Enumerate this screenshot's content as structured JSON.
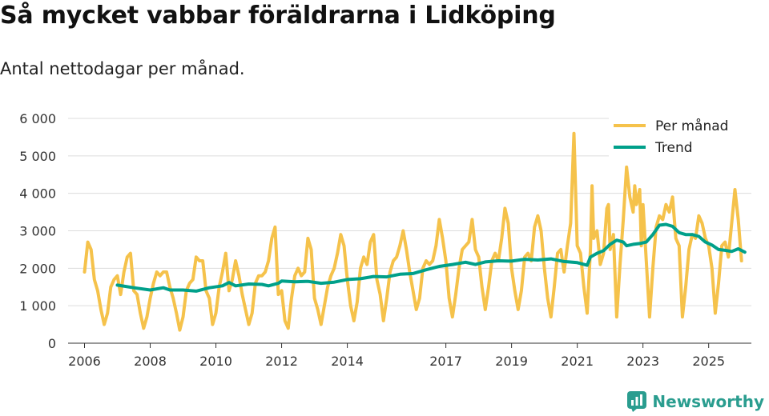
{
  "brand": {
    "name": "Newsworthy",
    "color": "#2a9d8f"
  },
  "chart_data": {
    "type": "line",
    "title": "Så mycket vabbar föräldrarna i Lidköping",
    "subtitle": "Antal nettodagar per månad.",
    "xlabel": "",
    "ylabel": "",
    "ylim": [
      0,
      6000
    ],
    "xlim": [
      2005.5,
      2026.3
    ],
    "grid": true,
    "legend_position": "top-right",
    "y_ticks": [
      {
        "value": 0,
        "label": "0"
      },
      {
        "value": 1000,
        "label": "1 000"
      },
      {
        "value": 2000,
        "label": "2 000"
      },
      {
        "value": 3000,
        "label": "3 000"
      },
      {
        "value": 4000,
        "label": "4 000"
      },
      {
        "value": 5000,
        "label": "5 000"
      },
      {
        "value": 6000,
        "label": "6 000"
      }
    ],
    "x_ticks": [
      {
        "value": 2006,
        "label": "2006"
      },
      {
        "value": 2008,
        "label": "2008"
      },
      {
        "value": 2010,
        "label": "2010"
      },
      {
        "value": 2012,
        "label": "2012"
      },
      {
        "value": 2014,
        "label": "2014"
      },
      {
        "value": 2017,
        "label": "2017"
      },
      {
        "value": 2019,
        "label": "2019"
      },
      {
        "value": 2021,
        "label": "2021"
      },
      {
        "value": 2023,
        "label": "2023"
      },
      {
        "value": 2025,
        "label": "2025"
      }
    ],
    "series": [
      {
        "name": "Per månad",
        "color": "#f5c24b",
        "points": [
          [
            2006.0,
            1900
          ],
          [
            2006.1,
            2700
          ],
          [
            2006.2,
            2500
          ],
          [
            2006.3,
            1700
          ],
          [
            2006.4,
            1400
          ],
          [
            2006.5,
            900
          ],
          [
            2006.6,
            500
          ],
          [
            2006.7,
            800
          ],
          [
            2006.8,
            1500
          ],
          [
            2006.9,
            1700
          ],
          [
            2007.0,
            1800
          ],
          [
            2007.1,
            1300
          ],
          [
            2007.2,
            1900
          ],
          [
            2007.3,
            2300
          ],
          [
            2007.4,
            2400
          ],
          [
            2007.5,
            1400
          ],
          [
            2007.6,
            1300
          ],
          [
            2007.7,
            800
          ],
          [
            2007.8,
            400
          ],
          [
            2007.9,
            700
          ],
          [
            2008.0,
            1200
          ],
          [
            2008.1,
            1600
          ],
          [
            2008.2,
            1900
          ],
          [
            2008.3,
            1800
          ],
          [
            2008.4,
            1900
          ],
          [
            2008.5,
            1900
          ],
          [
            2008.6,
            1500
          ],
          [
            2008.7,
            1200
          ],
          [
            2008.8,
            800
          ],
          [
            2008.9,
            350
          ],
          [
            2009.0,
            700
          ],
          [
            2009.1,
            1400
          ],
          [
            2009.2,
            1600
          ],
          [
            2009.3,
            1700
          ],
          [
            2009.4,
            2300
          ],
          [
            2009.5,
            2200
          ],
          [
            2009.6,
            2200
          ],
          [
            2009.7,
            1400
          ],
          [
            2009.8,
            1200
          ],
          [
            2009.9,
            500
          ],
          [
            2010.0,
            800
          ],
          [
            2010.1,
            1500
          ],
          [
            2010.2,
            1900
          ],
          [
            2010.3,
            2400
          ],
          [
            2010.4,
            1400
          ],
          [
            2010.5,
            1700
          ],
          [
            2010.6,
            2200
          ],
          [
            2010.7,
            1800
          ],
          [
            2010.8,
            1300
          ],
          [
            2010.9,
            900
          ],
          [
            2011.0,
            500
          ],
          [
            2011.1,
            800
          ],
          [
            2011.2,
            1600
          ],
          [
            2011.3,
            1800
          ],
          [
            2011.4,
            1800
          ],
          [
            2011.5,
            1900
          ],
          [
            2011.6,
            2200
          ],
          [
            2011.7,
            2800
          ],
          [
            2011.8,
            3100
          ],
          [
            2011.9,
            1300
          ],
          [
            2012.0,
            1400
          ],
          [
            2012.1,
            600
          ],
          [
            2012.2,
            400
          ],
          [
            2012.3,
            1200
          ],
          [
            2012.4,
            1800
          ],
          [
            2012.5,
            2000
          ],
          [
            2012.6,
            1800
          ],
          [
            2012.7,
            1900
          ],
          [
            2012.8,
            2800
          ],
          [
            2012.9,
            2500
          ],
          [
            2013.0,
            1200
          ],
          [
            2013.1,
            900
          ],
          [
            2013.2,
            500
          ],
          [
            2013.3,
            1000
          ],
          [
            2013.4,
            1500
          ],
          [
            2013.5,
            1800
          ],
          [
            2013.6,
            2000
          ],
          [
            2013.7,
            2400
          ],
          [
            2013.8,
            2900
          ],
          [
            2013.9,
            2600
          ],
          [
            2014.0,
            1700
          ],
          [
            2014.1,
            1000
          ],
          [
            2014.2,
            600
          ],
          [
            2014.3,
            1100
          ],
          [
            2014.4,
            2000
          ],
          [
            2014.5,
            2300
          ],
          [
            2014.6,
            2100
          ],
          [
            2014.7,
            2700
          ],
          [
            2014.8,
            2900
          ],
          [
            2014.9,
            1700
          ],
          [
            2015.0,
            1300
          ],
          [
            2015.1,
            600
          ],
          [
            2015.2,
            1200
          ],
          [
            2015.3,
            1900
          ],
          [
            2015.4,
            2200
          ],
          [
            2015.5,
            2300
          ],
          [
            2015.6,
            2600
          ],
          [
            2015.7,
            3000
          ],
          [
            2015.8,
            2500
          ],
          [
            2015.9,
            1900
          ],
          [
            2016.0,
            1400
          ],
          [
            2016.1,
            900
          ],
          [
            2016.2,
            1200
          ],
          [
            2016.3,
            2000
          ],
          [
            2016.4,
            2200
          ],
          [
            2016.5,
            2100
          ],
          [
            2016.6,
            2200
          ],
          [
            2016.7,
            2600
          ],
          [
            2016.8,
            3300
          ],
          [
            2016.9,
            2800
          ],
          [
            2017.0,
            2200
          ],
          [
            2017.1,
            1200
          ],
          [
            2017.2,
            700
          ],
          [
            2017.3,
            1300
          ],
          [
            2017.4,
            2000
          ],
          [
            2017.5,
            2500
          ],
          [
            2017.6,
            2600
          ],
          [
            2017.7,
            2700
          ],
          [
            2017.8,
            3300
          ],
          [
            2017.9,
            2500
          ],
          [
            2018.0,
            2300
          ],
          [
            2018.1,
            1500
          ],
          [
            2018.2,
            900
          ],
          [
            2018.3,
            1500
          ],
          [
            2018.4,
            2200
          ],
          [
            2018.5,
            2400
          ],
          [
            2018.6,
            2200
          ],
          [
            2018.7,
            2800
          ],
          [
            2018.8,
            3600
          ],
          [
            2018.9,
            3200
          ],
          [
            2019.0,
            2000
          ],
          [
            2019.1,
            1400
          ],
          [
            2019.2,
            900
          ],
          [
            2019.3,
            1400
          ],
          [
            2019.4,
            2300
          ],
          [
            2019.5,
            2400
          ],
          [
            2019.6,
            2200
          ],
          [
            2019.7,
            3100
          ],
          [
            2019.8,
            3400
          ],
          [
            2019.9,
            3000
          ],
          [
            2020.0,
            2000
          ],
          [
            2020.1,
            1200
          ],
          [
            2020.2,
            700
          ],
          [
            2020.3,
            1500
          ],
          [
            2020.4,
            2400
          ],
          [
            2020.5,
            2500
          ],
          [
            2020.6,
            1900
          ],
          [
            2020.7,
            2600
          ],
          [
            2020.8,
            3200
          ],
          [
            2020.9,
            5600
          ],
          [
            2021.0,
            2600
          ],
          [
            2021.1,
            2400
          ],
          [
            2021.2,
            1500
          ],
          [
            2021.3,
            800
          ],
          [
            2021.4,
            2500
          ],
          [
            2021.45,
            4200
          ],
          [
            2021.5,
            2800
          ],
          [
            2021.6,
            3000
          ],
          [
            2021.7,
            2100
          ],
          [
            2021.8,
            2400
          ],
          [
            2021.9,
            3600
          ],
          [
            2021.95,
            3700
          ],
          [
            2022.0,
            2500
          ],
          [
            2022.1,
            2900
          ],
          [
            2022.2,
            700
          ],
          [
            2022.3,
            2100
          ],
          [
            2022.4,
            3300
          ],
          [
            2022.5,
            4700
          ],
          [
            2022.6,
            3900
          ],
          [
            2022.7,
            3500
          ],
          [
            2022.75,
            4200
          ],
          [
            2022.8,
            3700
          ],
          [
            2022.9,
            4100
          ],
          [
            2022.95,
            2600
          ],
          [
            2023.0,
            3700
          ],
          [
            2023.1,
            2200
          ],
          [
            2023.2,
            700
          ],
          [
            2023.3,
            2000
          ],
          [
            2023.4,
            3100
          ],
          [
            2023.5,
            3400
          ],
          [
            2023.6,
            3300
          ],
          [
            2023.7,
            3700
          ],
          [
            2023.8,
            3500
          ],
          [
            2023.9,
            3900
          ],
          [
            2024.0,
            2800
          ],
          [
            2024.1,
            2600
          ],
          [
            2024.2,
            700
          ],
          [
            2024.3,
            1500
          ],
          [
            2024.4,
            2500
          ],
          [
            2024.5,
            2900
          ],
          [
            2024.6,
            2800
          ],
          [
            2024.7,
            3400
          ],
          [
            2024.8,
            3200
          ],
          [
            2024.9,
            2800
          ],
          [
            2025.0,
            2600
          ],
          [
            2025.1,
            2000
          ],
          [
            2025.2,
            800
          ],
          [
            2025.3,
            1600
          ],
          [
            2025.4,
            2600
          ],
          [
            2025.5,
            2700
          ],
          [
            2025.6,
            2300
          ],
          [
            2025.7,
            3200
          ],
          [
            2025.8,
            4100
          ],
          [
            2025.9,
            3300
          ],
          [
            2026.0,
            2200
          ]
        ]
      },
      {
        "name": "Trend",
        "color": "#00a08a",
        "points": [
          [
            2007.0,
            1550
          ],
          [
            2007.5,
            1480
          ],
          [
            2008.0,
            1420
          ],
          [
            2008.4,
            1480
          ],
          [
            2008.6,
            1420
          ],
          [
            2009.0,
            1420
          ],
          [
            2009.4,
            1390
          ],
          [
            2009.8,
            1480
          ],
          [
            2010.2,
            1530
          ],
          [
            2010.4,
            1620
          ],
          [
            2010.6,
            1530
          ],
          [
            2011.0,
            1580
          ],
          [
            2011.4,
            1570
          ],
          [
            2011.6,
            1530
          ],
          [
            2011.9,
            1600
          ],
          [
            2012.0,
            1660
          ],
          [
            2012.4,
            1640
          ],
          [
            2012.8,
            1650
          ],
          [
            2013.2,
            1600
          ],
          [
            2013.6,
            1630
          ],
          [
            2014.0,
            1700
          ],
          [
            2014.4,
            1720
          ],
          [
            2014.8,
            1780
          ],
          [
            2015.2,
            1770
          ],
          [
            2015.6,
            1840
          ],
          [
            2016.0,
            1860
          ],
          [
            2016.4,
            1960
          ],
          [
            2016.8,
            2050
          ],
          [
            2017.2,
            2100
          ],
          [
            2017.6,
            2160
          ],
          [
            2017.9,
            2100
          ],
          [
            2018.2,
            2170
          ],
          [
            2018.6,
            2200
          ],
          [
            2019.0,
            2190
          ],
          [
            2019.4,
            2240
          ],
          [
            2019.8,
            2220
          ],
          [
            2020.2,
            2250
          ],
          [
            2020.6,
            2180
          ],
          [
            2021.0,
            2150
          ],
          [
            2021.3,
            2080
          ],
          [
            2021.4,
            2300
          ],
          [
            2021.6,
            2400
          ],
          [
            2021.8,
            2470
          ],
          [
            2022.0,
            2640
          ],
          [
            2022.2,
            2750
          ],
          [
            2022.4,
            2700
          ],
          [
            2022.5,
            2600
          ],
          [
            2022.7,
            2640
          ],
          [
            2022.9,
            2660
          ],
          [
            2023.1,
            2700
          ],
          [
            2023.3,
            2900
          ],
          [
            2023.5,
            3150
          ],
          [
            2023.7,
            3170
          ],
          [
            2023.9,
            3120
          ],
          [
            2024.1,
            2950
          ],
          [
            2024.3,
            2900
          ],
          [
            2024.5,
            2900
          ],
          [
            2024.7,
            2850
          ],
          [
            2024.9,
            2700
          ],
          [
            2025.1,
            2620
          ],
          [
            2025.3,
            2500
          ],
          [
            2025.5,
            2480
          ],
          [
            2025.7,
            2450
          ],
          [
            2025.9,
            2520
          ],
          [
            2026.1,
            2430
          ]
        ]
      }
    ]
  }
}
